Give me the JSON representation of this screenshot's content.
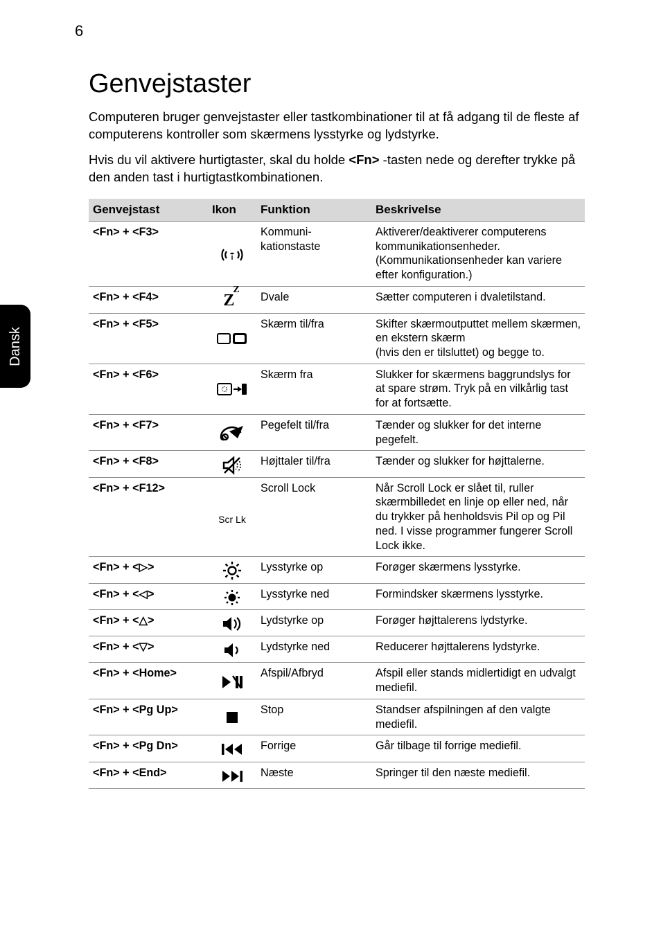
{
  "page_number": "6",
  "side_tab": "Dansk",
  "heading": "Genvejstaster",
  "intro1": "Computeren bruger genvejstaster eller tastkombinationer til at få adgang til de fleste af computerens kontroller som skærmens lysstyrke og lydstyrke.",
  "intro2_pre": "Hvis du vil aktivere hurtigtaster, skal du holde ",
  "intro2_key": "<Fn>",
  "intro2_post": " -tasten nede og derefter trykke på den anden tast i hurtigtastkombinationen.",
  "columns": {
    "key": "Genvejstast",
    "icon": "Ikon",
    "func": "Funktion",
    "desc": "Beskrivelse"
  },
  "rows": [
    {
      "key": "<Fn> + <F3>",
      "icon": "wireless",
      "func": "Kommuni-\nkationstaste",
      "desc": "Aktiverer/deaktiverer computerens kommunikationsenheder. (Kommunikationsenheder kan variere efter konfiguration.)"
    },
    {
      "key": "<Fn> + <F4>",
      "icon": "zz",
      "func": "Dvale",
      "desc": "Sætter computeren i dvaletilstand."
    },
    {
      "key": "<Fn> + <F5>",
      "icon": "displays",
      "func": "Skærm til/fra",
      "desc": "Skifter skærmoutputtet mellem skærmen, en ekstern skærm\n(hvis den er tilsluttet) og begge to."
    },
    {
      "key": "<Fn> + <F6>",
      "icon": "screenoff",
      "func": "Skærm fra",
      "desc": "Slukker for skærmens baggrundslys for at spare strøm. Tryk på en vilkårlig tast for at fortsætte."
    },
    {
      "key": "<Fn> + <F7>",
      "icon": "touchpad",
      "func": "Pegefelt til/fra",
      "desc": "Tænder og slukker for det interne pegefelt."
    },
    {
      "key": "<Fn> + <F8>",
      "icon": "speakermute",
      "func": "Højttaler til/fra",
      "desc": "Tænder og slukker for højttalerne."
    },
    {
      "key": "<Fn> + <F12>",
      "icon": "scrlk",
      "func": "Scroll Lock",
      "desc": "Når Scroll Lock er slået til, ruller skærmbilledet en linje op eller ned, når du trykker på henholdsvis Pil op og Pil ned. I visse programmer fungerer Scroll Lock ikke."
    },
    {
      "key": "<Fn> + <▷>",
      "icon": "brightup",
      "func": "Lysstyrke op",
      "desc": "Forøger skærmens lysstyrke."
    },
    {
      "key": "<Fn> + <◁>",
      "icon": "brightdown",
      "func": "Lysstyrke ned",
      "desc": "Formindsker skærmens lysstyrke."
    },
    {
      "key": "<Fn> + <△>",
      "icon": "volup",
      "func": "Lydstyrke op",
      "desc": "Forøger højttalerens lydstyrke."
    },
    {
      "key": "<Fn> + <▽>",
      "icon": "voldown",
      "func": "Lydstyrke ned",
      "desc": "Reducerer højttalerens lydstyrke."
    },
    {
      "key": "<Fn> + <Home>",
      "icon": "playpause",
      "func": "Afspil/Afbryd",
      "desc": "Afspil eller stands midlertidigt en udvalgt mediefil."
    },
    {
      "key": "<Fn> + <Pg Up>",
      "icon": "stop",
      "func": "Stop",
      "desc": "Standser afspilningen af den valgte mediefil."
    },
    {
      "key": "<Fn> + <Pg Dn>",
      "icon": "prev",
      "func": "Forrige",
      "desc": "Går tilbage til forrige mediefil."
    },
    {
      "key": "<Fn> + <End>",
      "icon": "next",
      "func": "Næste",
      "desc": "Springer til den næste mediefil."
    }
  ]
}
